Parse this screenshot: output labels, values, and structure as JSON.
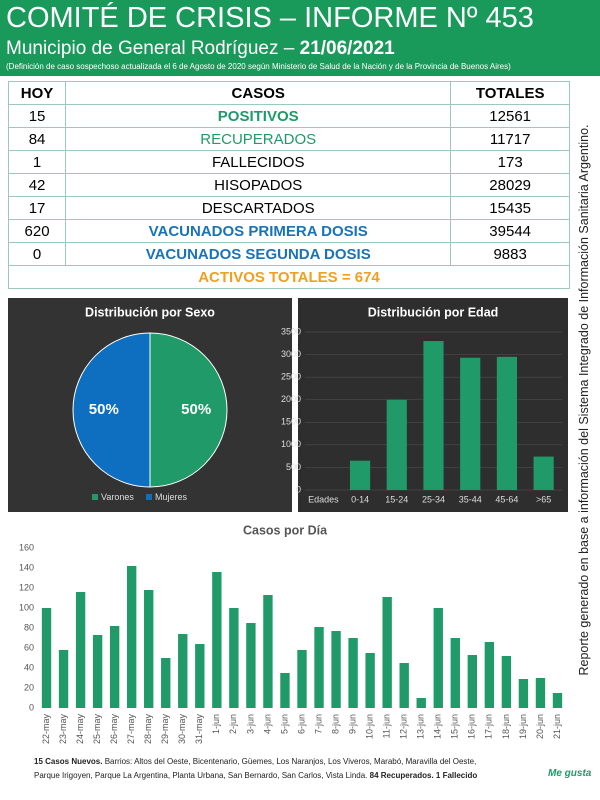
{
  "header": {
    "title": "COMITÉ DE CRISIS – INFORME Nº 453",
    "subtitle": "Municipio de General Rodríguez –",
    "date": "21/06/2021",
    "note": "(Definición de caso sospechoso actualizada el 6 de Agosto de 2020 según Ministerio de Salud de la Nación y de la Provincia de Buenos Aires)"
  },
  "table": {
    "columns": [
      "HOY",
      "CASOS",
      "TOTALES"
    ],
    "rows": [
      [
        "15",
        "POSITIVOS",
        "12561"
      ],
      [
        "84",
        "RECUPERADOS",
        "11717"
      ],
      [
        "1",
        "FALLECIDOS",
        "173"
      ],
      [
        "42",
        "HISOPADOS",
        "28029"
      ],
      [
        "17",
        "DESCARTADOS",
        "15435"
      ],
      [
        "620",
        "VACUNADOS PRIMERA DOSIS",
        "39544"
      ],
      [
        "0",
        "VACUNADOS SEGUNDA DOSIS",
        "9883"
      ]
    ],
    "summary": "ACTIVOS TOTALES = 674"
  },
  "side_note": "Reporte generado en base a información del Sistema Integrado de Información Sanitaria Argentino.",
  "chart_data": [
    {
      "type": "pie",
      "title": "Distribución por Sexo",
      "categories": [
        "Varones",
        "Mujeres"
      ],
      "values": [
        50,
        50
      ],
      "value_labels": [
        "50%",
        "50%"
      ],
      "colors": [
        "#1f9a68",
        "#0e6fc0"
      ]
    },
    {
      "type": "bar",
      "title": "Distribución por Edad",
      "categories": [
        "Edades",
        "0-14",
        "15-24",
        "25-34",
        "35-44",
        "45-64",
        ">65"
      ],
      "values": [
        null,
        650,
        2000,
        3300,
        2930,
        2950,
        740
      ],
      "color": "#1f9a68",
      "ylim": [
        0,
        3500
      ],
      "yticks": [
        0,
        500,
        1000,
        1500,
        2000,
        2500,
        3000,
        3500
      ],
      "grid": true
    },
    {
      "type": "bar",
      "title": "Casos por Día",
      "categories": [
        "22-may",
        "23-may",
        "24-may",
        "25-may",
        "26-may",
        "27-may",
        "28-may",
        "29-may",
        "30-may",
        "31-may",
        "1-jun",
        "2-jun",
        "3-jun",
        "4-jun",
        "5-jun",
        "6-jun",
        "7-jun",
        "8-jun",
        "9-jun",
        "10-jun",
        "11-jun",
        "12-jun",
        "13-jun",
        "14-jun",
        "15-jun",
        "16-jun",
        "17-jun",
        "18-jun",
        "19-jun",
        "20-jun",
        "21-jun"
      ],
      "values": [
        100,
        58,
        116,
        73,
        82,
        142,
        118,
        50,
        74,
        64,
        136,
        100,
        85,
        113,
        35,
        58,
        81,
        77,
        70,
        55,
        111,
        45,
        10,
        100,
        70,
        53,
        66,
        52,
        29,
        30,
        15
      ],
      "color": "#1f9a68",
      "ylim": [
        0,
        160
      ],
      "yticks": [
        0,
        20,
        40,
        60,
        80,
        100,
        120,
        140,
        160
      ],
      "grid": false
    }
  ],
  "footer": {
    "bold1": "15 Casos Nuevos.",
    "text": "Barrios: Altos del Oeste, Bicentenario, Güemes, Los Naranjos, Los Viveros, Marabó, Maravilla del Oeste, Parque Irigoyen, Parque La Argentina, Planta Urbana, San Bernardo, San Carlos, Vista Linda.",
    "bold2": "84 Recuperados. 1 Fallecido",
    "logo": "Me gusta"
  }
}
